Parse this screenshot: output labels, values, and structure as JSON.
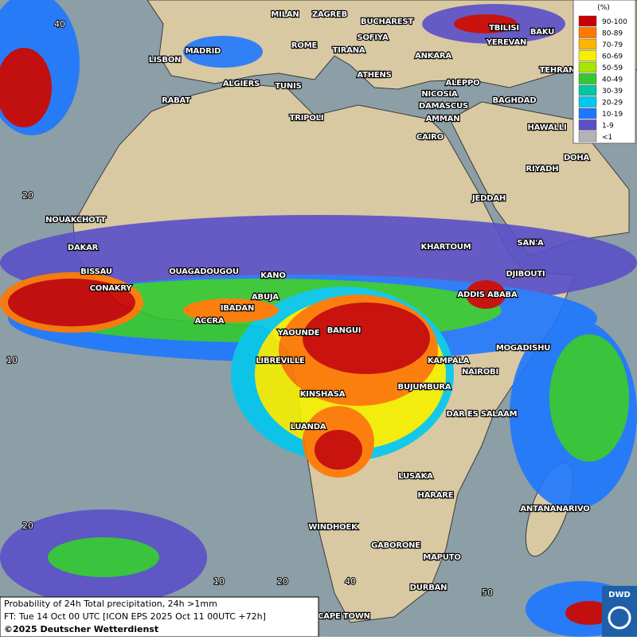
{
  "legend": {
    "unit": "(%)",
    "items": [
      {
        "label": "90-100",
        "color": "#c80000"
      },
      {
        "label": "80-89",
        "color": "#ff7800"
      },
      {
        "label": "70-79",
        "color": "#ffb400"
      },
      {
        "label": "60-69",
        "color": "#f5f000"
      },
      {
        "label": "50-59",
        "color": "#a6e600"
      },
      {
        "label": "40-49",
        "color": "#32c832"
      },
      {
        "label": "30-39",
        "color": "#00c8a0"
      },
      {
        "label": "20-29",
        "color": "#00c8f0"
      },
      {
        "label": "10-19",
        "color": "#1e78ff"
      },
      {
        "label": "1-9",
        "color": "#5a50c8"
      },
      {
        "label": "<1",
        "color": "#b4b4b4"
      }
    ]
  },
  "cities": [
    "MILAN",
    "ZAGREB",
    "BUCHAREST",
    "TBILISI",
    "SOFIYA",
    "BAKU",
    "ROME",
    "TIRANA",
    "YEREVAN",
    "MADRID",
    "ANKARA",
    "LISBON",
    "TEHRAN",
    "ATHENS",
    "ALGIERS",
    "TUNIS",
    "ALEPPO",
    "RABAT",
    "NICOSIA",
    "BAGHDAD",
    "TRIPOLI",
    "DAMASCUS",
    "AMMAN",
    "HAWALLI",
    "CAIRO",
    "DOHA",
    "RIYADH",
    "JEDDAH",
    "NOUAKCHOTT",
    "DAKAR",
    "KHARTOUM",
    "SAN'A",
    "BISSAU",
    "OUAGADOUGOU",
    "KANO",
    "DJIBOUTI",
    "CONAKRY",
    "ABUJA",
    "ADDIS ABABA",
    "IBADAN",
    "ACCRA",
    "YAOUNDE",
    "BANGUI",
    "MOGADISHU",
    "LIBREVILLE",
    "KAMPALA",
    "NAIROBI",
    "BUJUMBURA",
    "KINSHASA",
    "DAR ES SALAAM",
    "LUANDA",
    "LUSAKA",
    "HARARE",
    "ANTANANARIVO",
    "WINDHOEK",
    "GABORONE",
    "MAPUTO",
    "DURBAN",
    "CAPE TOWN"
  ],
  "grid_labels": [
    "40",
    "20",
    "10",
    "20",
    "10",
    "20",
    "40",
    "50"
  ],
  "footer": {
    "title": "Probability of 24h Total precipitation, 24h >1mm",
    "forecast": "FT: Tue 14 Oct 00 UTC [ICON EPS 2025 Oct 11 00UTC +72h]",
    "copyright": "©2025 Deutscher Wetterdienst"
  },
  "logo": "DWD"
}
